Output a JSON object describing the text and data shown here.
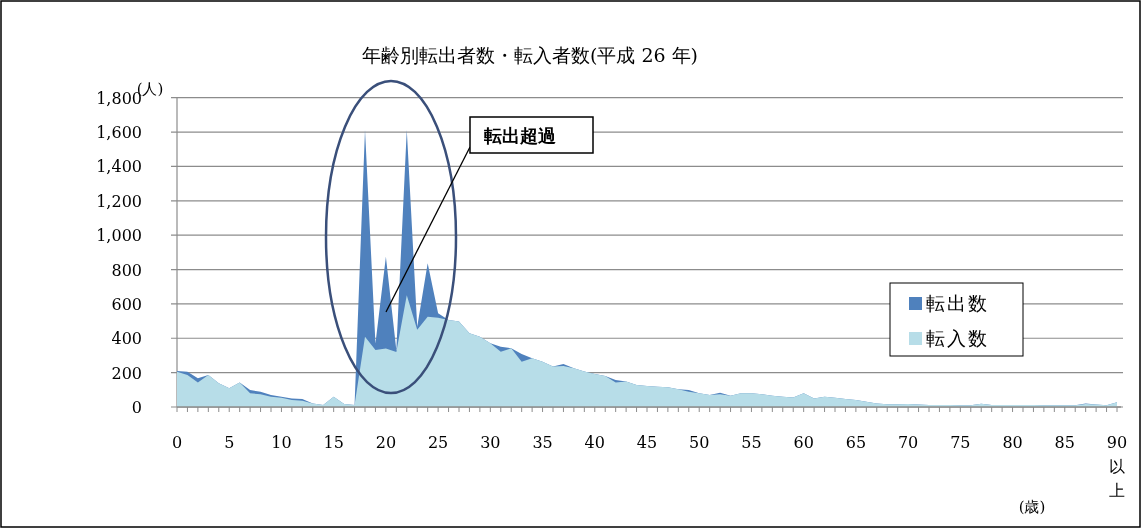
{
  "chart_data": {
    "type": "area",
    "title": "年齢別転出者数・転入者数(平成 26 年)",
    "ylabel": "(人)",
    "xlabel": "(歳)",
    "categories": [
      "0",
      null,
      null,
      null,
      null,
      "5",
      null,
      null,
      null,
      null,
      "10",
      null,
      null,
      null,
      null,
      "15",
      null,
      null,
      null,
      null,
      "20",
      null,
      null,
      null,
      null,
      "25",
      null,
      null,
      null,
      null,
      "30",
      null,
      null,
      null,
      null,
      "35",
      null,
      null,
      null,
      null,
      "40",
      null,
      null,
      null,
      null,
      "45",
      null,
      null,
      null,
      null,
      "50",
      null,
      null,
      null,
      null,
      "55",
      null,
      null,
      null,
      null,
      "60",
      null,
      null,
      null,
      null,
      "65",
      null,
      null,
      null,
      null,
      "70",
      null,
      null,
      null,
      null,
      "75",
      null,
      null,
      null,
      null,
      "80",
      null,
      null,
      null,
      null,
      "85",
      null,
      null,
      null,
      null,
      "90以上"
    ],
    "series": [
      {
        "name": "転出数",
        "color": "#4f81bd",
        "values": [
          210,
          205,
          167,
          186,
          138,
          109,
          142,
          99,
          89,
          70,
          60,
          50,
          47,
          21,
          12,
          60,
          17,
          12,
          1612,
          370,
          875,
          332,
          1612,
          467,
          836,
          545,
          506,
          497,
          429,
          409,
          371,
          351,
          342,
          309,
          283,
          264,
          235,
          250,
          225,
          206,
          192,
          181,
          157,
          148,
          128,
          122,
          118,
          115,
          103,
          99,
          80,
          70,
          83,
          66,
          80,
          80,
          74,
          66,
          60,
          56,
          80,
          50,
          60,
          54,
          47,
          41,
          31,
          21,
          16,
          16,
          17,
          14,
          12,
          12,
          12,
          10,
          10,
          19,
          12,
          12,
          12,
          12,
          12,
          10,
          10,
          10,
          10,
          21,
          14,
          10,
          27
        ]
      },
      {
        "name": "転入数",
        "color": "#b7dde8",
        "values": [
          205,
          186,
          142,
          186,
          138,
          109,
          142,
          80,
          74,
          60,
          54,
          41,
          37,
          21,
          12,
          60,
          17,
          12,
          409,
          332,
          341,
          320,
          650,
          450,
          525,
          520,
          506,
          497,
          429,
          409,
          371,
          322,
          342,
          264,
          283,
          264,
          235,
          239,
          225,
          206,
          192,
          181,
          142,
          148,
          128,
          122,
          118,
          115,
          103,
          89,
          80,
          70,
          74,
          66,
          80,
          80,
          74,
          66,
          60,
          56,
          80,
          50,
          60,
          54,
          47,
          41,
          31,
          21,
          16,
          16,
          17,
          14,
          12,
          12,
          12,
          10,
          10,
          19,
          12,
          12,
          12,
          12,
          12,
          10,
          10,
          10,
          10,
          17,
          14,
          10,
          27
        ]
      }
    ],
    "ylim": [
      0,
      1800
    ],
    "yticks": [
      0,
      200,
      400,
      600,
      800,
      {
        "value": 1000,
        "label": "1,000"
      },
      {
        "value": 1200,
        "label": "1,200"
      },
      {
        "value": 1400,
        "label": "1,400"
      },
      {
        "value": 1600,
        "label": "1,600"
      },
      {
        "value": 1800,
        "label": "1,800"
      }
    ],
    "grid": "y",
    "legend": "right",
    "annotations": [
      "転出超過"
    ]
  }
}
